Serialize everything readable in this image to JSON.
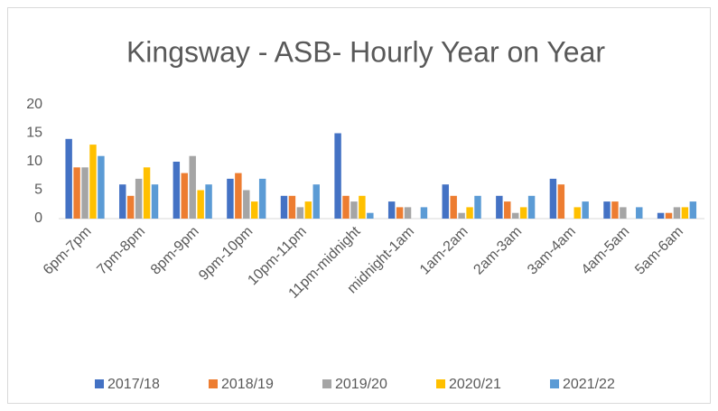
{
  "chart_data": {
    "type": "bar",
    "title": "Kingsway - ASB- Hourly Year on Year",
    "categories": [
      "6pm-7pm",
      "7pm-8pm",
      "8pm-9pm",
      "9pm-10pm",
      "10pm-11pm",
      "11pm-midnight",
      "midnight-1am",
      "1am-2am",
      "2am-3am",
      "3am-4am",
      "4am-5am",
      "5am-6am"
    ],
    "series": [
      {
        "name": "2017/18",
        "color": "#4472c4",
        "values": [
          14,
          6,
          10,
          7,
          4,
          15,
          3,
          6,
          4,
          7,
          3,
          1
        ]
      },
      {
        "name": "2018/19",
        "color": "#ed7d31",
        "values": [
          9,
          4,
          8,
          8,
          4,
          4,
          2,
          4,
          3,
          6,
          3,
          1
        ]
      },
      {
        "name": "2019/20",
        "color": "#a5a5a5",
        "values": [
          9,
          7,
          11,
          5,
          2,
          3,
          2,
          1,
          1,
          0,
          2,
          2
        ]
      },
      {
        "name": "2020/21",
        "color": "#ffc000",
        "values": [
          13,
          9,
          5,
          3,
          3,
          4,
          0,
          2,
          2,
          2,
          0,
          2
        ]
      },
      {
        "name": "2021/22",
        "color": "#5b9bd5",
        "values": [
          11,
          6,
          6,
          7,
          6,
          1,
          2,
          4,
          4,
          3,
          2,
          3
        ]
      }
    ],
    "ylim": [
      0,
      20
    ],
    "yticks": [
      0,
      5,
      10,
      15,
      20
    ],
    "grid": false,
    "legend": "bottom"
  }
}
